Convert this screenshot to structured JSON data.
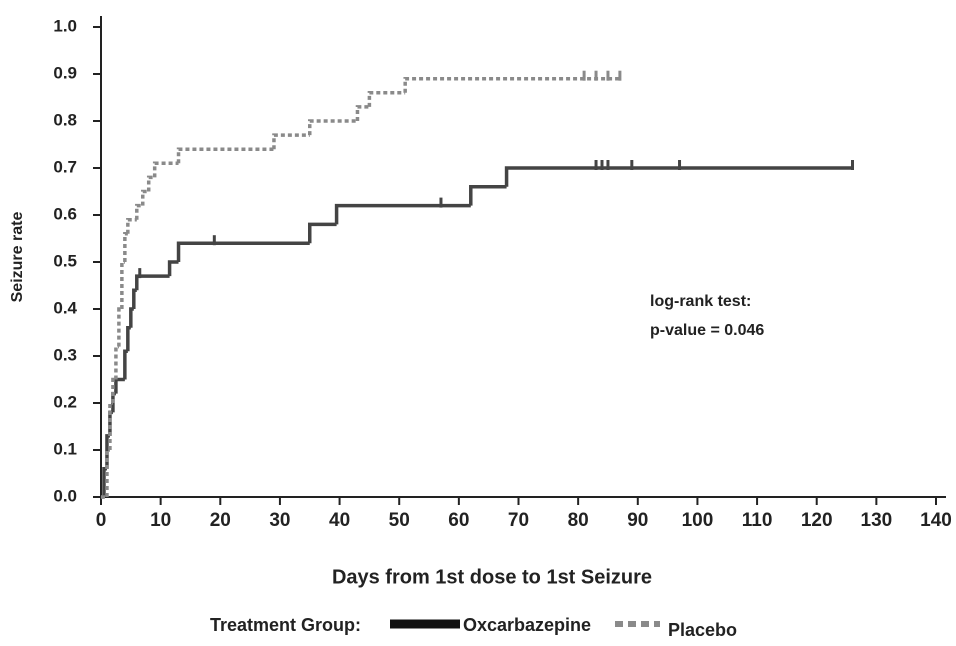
{
  "chart_data": {
    "type": "step",
    "y_label": "Seizure rate",
    "x_label": "Days from 1st dose to 1st Seizure",
    "legend_title": "Treatment Group:",
    "annotations": [
      "log-rank test:",
      "p-value = 0.046"
    ],
    "xlim": [
      0,
      140
    ],
    "xticks": [
      0,
      10,
      20,
      30,
      40,
      50,
      60,
      70,
      80,
      90,
      100,
      110,
      120,
      130,
      140
    ],
    "ylim": [
      0,
      1
    ],
    "yticks": [
      {
        "value": 0,
        "label": "0.0"
      },
      0.1,
      0.2,
      0.3,
      0.4,
      0.5,
      0.6,
      0.7,
      0.8,
      0.9,
      {
        "value": 1,
        "label": "1.0"
      }
    ],
    "series": [
      {
        "name": "Oxcarbazepine",
        "color": "#444444",
        "dash": "solid",
        "x": [
          0,
          0.5,
          1,
          1.5,
          2,
          2.5,
          4,
          4.5,
          5,
          5.5,
          6,
          11.5,
          13,
          35,
          39.5,
          62,
          68,
          126
        ],
        "values": [
          0,
          0.06,
          0.13,
          0.18,
          0.22,
          0.25,
          0.31,
          0.36,
          0.4,
          0.44,
          0.47,
          0.5,
          0.54,
          0.58,
          0.62,
          0.66,
          0.7,
          0.7
        ],
        "censored": [
          6.5,
          19,
          57,
          83,
          84,
          85,
          89,
          97,
          126
        ]
      },
      {
        "name": "Placebo",
        "color": "#8a8a8a",
        "dash": "dashed",
        "x": [
          0,
          1,
          1.5,
          2,
          2.5,
          3,
          3.5,
          4,
          4.5,
          6,
          7,
          8,
          9,
          13,
          29,
          35,
          43,
          45,
          51,
          87
        ],
        "values": [
          0,
          0.1,
          0.2,
          0.25,
          0.32,
          0.4,
          0.5,
          0.56,
          0.59,
          0.62,
          0.65,
          0.68,
          0.71,
          0.74,
          0.77,
          0.8,
          0.83,
          0.86,
          0.89,
          0.89
        ],
        "censored": [
          81,
          83,
          85,
          87
        ]
      }
    ]
  }
}
